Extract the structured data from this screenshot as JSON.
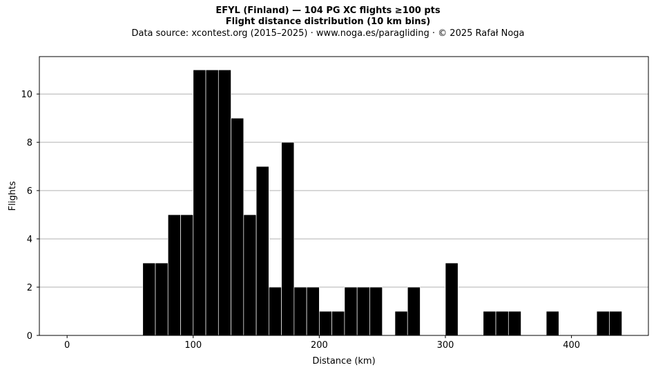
{
  "chart_data": {
    "type": "bar",
    "title": "EFYL (Finland)  —  104 PG XC flights ≥100 pts",
    "title2": "Flight distance distribution (10 km bins)",
    "subtitle": "Data source: xcontest.org (2015–2025)  ·  www.noga.es/paragliding  ·  © 2025 Rafał Noga",
    "xlabel": "Distance (km)",
    "ylabel": "Flights",
    "xlim": [
      -22,
      461
    ],
    "ylim": [
      0,
      11.55
    ],
    "xticks": [
      0,
      100,
      200,
      300,
      400
    ],
    "yticks": [
      0,
      2,
      4,
      6,
      8,
      10
    ],
    "grid": "horizontal",
    "bin_width": 10,
    "bar_color": "#000000",
    "edge_color": "#ffffff",
    "grid_color": "#b0b0b0",
    "bins_start": [
      60,
      70,
      80,
      90,
      100,
      110,
      120,
      130,
      140,
      150,
      160,
      170,
      180,
      190,
      200,
      210,
      220,
      230,
      240,
      260,
      270,
      300,
      330,
      340,
      350,
      380,
      420,
      430
    ],
    "values": [
      3,
      3,
      5,
      5,
      11,
      11,
      11,
      9,
      5,
      7,
      2,
      8,
      2,
      2,
      1,
      1,
      2,
      2,
      2,
      1,
      2,
      3,
      1,
      1,
      1,
      1,
      1,
      1
    ]
  }
}
